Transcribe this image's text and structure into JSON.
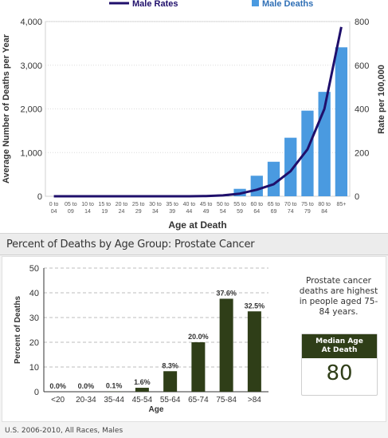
{
  "chart_data": [
    {
      "type": "bar",
      "legend": [
        {
          "name": "Male Rates",
          "color": "#1f0f6b"
        },
        {
          "name": "Male Deaths",
          "color": "#4a9ae0"
        }
      ],
      "categories": [
        "0 to 04",
        "05 to 09",
        "10 to 14",
        "15 to 19",
        "20 to 24",
        "25 to 29",
        "30 to 34",
        "35 to 39",
        "40 to 44",
        "45 to 49",
        "50 to 54",
        "55 to 59",
        "60 to 64",
        "65 to 69",
        "70 to 74",
        "75 to 79",
        "80 to 84",
        "85+"
      ],
      "tick_labels": [
        [
          "0 to",
          "04"
        ],
        [
          "05 to",
          "09"
        ],
        [
          "10 to",
          "14"
        ],
        [
          "15 to",
          "19"
        ],
        [
          "20 to",
          "24"
        ],
        [
          "25 to",
          "29"
        ],
        [
          "30 to",
          "34"
        ],
        [
          "35 to",
          "39"
        ],
        [
          "40 to",
          "44"
        ],
        [
          "45 to",
          "49"
        ],
        [
          "50 to",
          "54"
        ],
        [
          "55 to",
          "59"
        ],
        [
          "60 to",
          "64"
        ],
        [
          "65 to",
          "69"
        ],
        [
          "70 to",
          "74"
        ],
        [
          "75 to",
          "79"
        ],
        [
          "80 to",
          "84"
        ],
        [
          "85+",
          ""
        ]
      ],
      "series": [
        {
          "name": "Male Deaths",
          "type": "bar",
          "axis": "left",
          "values": [
            0,
            0,
            0,
            0,
            0,
            0,
            0,
            0,
            2,
            8,
            40,
            170,
            470,
            790,
            1340,
            1960,
            2390,
            3410
          ]
        },
        {
          "name": "Male Rates",
          "type": "line",
          "axis": "right",
          "values": [
            0,
            0,
            0,
            0,
            0,
            0,
            0,
            0,
            0,
            1,
            4,
            12,
            30,
            55,
            115,
            215,
            400,
            775
          ]
        }
      ],
      "xlabel": "Age at Death",
      "ylabel": "Average Number of Deaths per Year",
      "y2label": "Rate per 100,000",
      "ylim": [
        0,
        4000
      ],
      "y2lim": [
        0,
        800
      ],
      "yticks": [
        "0",
        "1,000",
        "2,000",
        "3,000",
        "4,000"
      ],
      "y2ticks": [
        "0",
        "200",
        "400",
        "600",
        "800"
      ],
      "grid": true
    },
    {
      "type": "bar",
      "title": "Percent of Deaths by Age Group: Prostate Cancer",
      "categories": [
        "<20",
        "20-34",
        "35-44",
        "45-54",
        "55-64",
        "65-74",
        "75-84",
        ">84"
      ],
      "values": [
        0.0,
        0.0,
        0.1,
        1.6,
        8.3,
        20.0,
        37.6,
        32.5
      ],
      "data_labels": [
        "0.0%",
        "0.0%",
        "0.1%",
        "1.6%",
        "8.3%",
        "20.0%",
        "37.6%",
        "32.5%"
      ],
      "xlabel": "Age",
      "ylabel": "Percent of Deaths",
      "ylim": [
        0,
        50
      ],
      "yticks": [
        "0",
        "10",
        "20",
        "30",
        "40",
        "50"
      ],
      "grid": true,
      "color": "#2f3e18"
    }
  ],
  "panel": {
    "title": "Percent of Deaths by Age Group: Prostate Cancer",
    "note": "Prostate cancer deaths are highest in people aged 75-84 years.",
    "median_label_line1": "Median Age",
    "median_label_line2": "At Death",
    "median_value": "80",
    "footnote": "U.S. 2006-2010, All Races, Males"
  }
}
